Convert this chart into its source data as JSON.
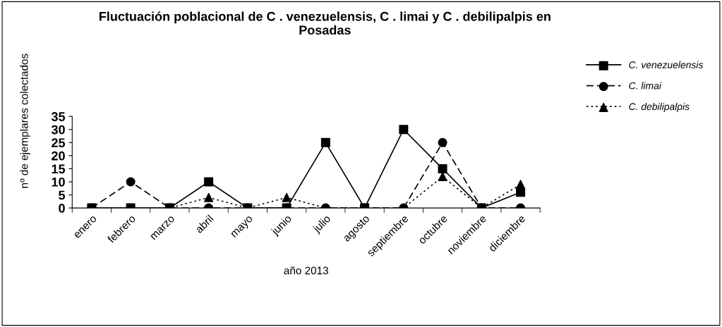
{
  "chart_data": {
    "type": "line",
    "title": "Fluctuación poblacional de C . venezuelensis, C . limai y C . debilipalpis en\nPosadas",
    "xlabel": "año 2013",
    "ylabel": "nº de ejemplares colectados",
    "categories": [
      "enero",
      "febrero",
      "marzo",
      "abril",
      "mayo",
      "junio",
      "julio",
      "agosto",
      "septiembre",
      "octubre",
      "noviembre",
      "diciembre"
    ],
    "series": [
      {
        "name": "C. venezuelensis",
        "color": "#000000",
        "marker": "square",
        "line_style": "solid",
        "values": [
          0,
          0,
          0,
          10,
          0,
          0,
          25,
          0,
          30,
          15,
          0,
          6
        ]
      },
      {
        "name": "C. limai",
        "color": "#000000",
        "marker": "circle",
        "line_style": "dashed",
        "values": [
          0,
          10,
          0,
          0,
          0,
          0,
          0,
          0,
          0,
          25,
          0,
          0
        ]
      },
      {
        "name": "C. debilipalpis",
        "color": "#000000",
        "marker": "triangle",
        "line_style": "dotted",
        "values": [
          0,
          0,
          0,
          4,
          0,
          4,
          0,
          0,
          0,
          12,
          0,
          9
        ]
      }
    ],
    "ylim": [
      0,
      35
    ],
    "yticks": [
      0,
      5,
      10,
      15,
      20,
      25,
      30,
      35
    ],
    "grid": false,
    "legend": "top right"
  }
}
